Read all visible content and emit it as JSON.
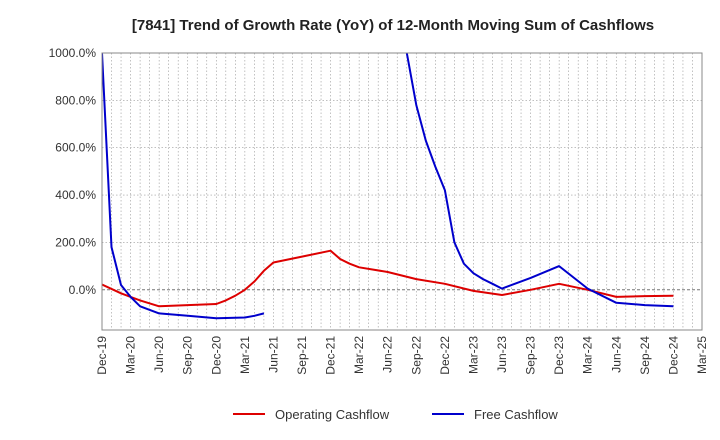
{
  "chart_data": {
    "type": "line",
    "title": "[7841]  Trend of Growth Rate (YoY) of 12-Month Moving Sum of Cashflows",
    "xlabel": "",
    "ylabel": "",
    "ylim": [
      -170,
      1000
    ],
    "yticks": [
      0,
      200,
      400,
      600,
      800,
      1000
    ],
    "ytick_labels": [
      "0.0%",
      "200.0%",
      "400.0%",
      "600.0%",
      "800.0%",
      "1000.0%"
    ],
    "x_tick_labels": [
      "Dec-19",
      "Mar-20",
      "Jun-20",
      "Sep-20",
      "Dec-20",
      "Mar-21",
      "Jun-21",
      "Sep-21",
      "Dec-21",
      "Mar-22",
      "Jun-22",
      "Sep-22",
      "Dec-22",
      "Mar-23",
      "Jun-23",
      "Sep-23",
      "Dec-23",
      "Mar-24",
      "Jun-24",
      "Sep-24",
      "Dec-24",
      "Mar-25"
    ],
    "grid": true,
    "legend_position": "bottom-center",
    "series": [
      {
        "name": "Operating Cashflow",
        "color": "#dd0000",
        "points": [
          [
            "2019-12",
            22
          ],
          [
            "2020-02",
            -15
          ],
          [
            "2020-03",
            -30
          ],
          [
            "2020-04",
            -45
          ],
          [
            "2020-06",
            -70
          ],
          [
            "2020-09",
            -65
          ],
          [
            "2020-12",
            -60
          ],
          [
            "2021-01",
            -45
          ],
          [
            "2021-02",
            -25
          ],
          [
            "2021-03",
            0
          ],
          [
            "2021-04",
            35
          ],
          [
            "2021-05",
            80
          ],
          [
            "2021-06",
            115
          ],
          [
            "2021-09",
            140
          ],
          [
            "2021-12",
            165
          ],
          [
            "2022-01",
            130
          ],
          [
            "2022-02",
            110
          ],
          [
            "2022-03",
            95
          ],
          [
            "2022-06",
            75
          ],
          [
            "2022-09",
            45
          ],
          [
            "2022-12",
            25
          ],
          [
            "2023-03",
            -5
          ],
          [
            "2023-06",
            -22
          ],
          [
            "2023-09",
            0
          ],
          [
            "2023-12",
            25
          ],
          [
            "2024-03",
            0
          ],
          [
            "2024-06",
            -30
          ],
          [
            "2024-09",
            -27
          ],
          [
            "2024-12",
            -25
          ]
        ]
      },
      {
        "name": "Free Cashflow",
        "color": "#0000cc",
        "points": [
          [
            "2019-12",
            1000
          ],
          [
            "2020-01",
            180
          ],
          [
            "2020-02",
            20
          ],
          [
            "2020-03",
            -30
          ],
          [
            "2020-04",
            -70
          ],
          [
            "2020-06",
            -100
          ],
          [
            "2020-09",
            -110
          ],
          [
            "2020-12",
            -120
          ],
          [
            "2021-03",
            -117
          ],
          [
            "2021-04",
            -110
          ],
          [
            "2021-05",
            -100
          ],
          null,
          [
            "2022-08",
            1000
          ],
          [
            "2022-09",
            780
          ],
          [
            "2022-10",
            630
          ],
          [
            "2022-11",
            520
          ],
          [
            "2022-12",
            420
          ],
          [
            "2023-01",
            200
          ],
          [
            "2023-02",
            110
          ],
          [
            "2023-03",
            70
          ],
          [
            "2023-04",
            45
          ],
          [
            "2023-05",
            25
          ],
          [
            "2023-06",
            5
          ],
          [
            "2023-09",
            50
          ],
          [
            "2023-12",
            100
          ],
          [
            "2024-03",
            5
          ],
          [
            "2024-06",
            -55
          ],
          [
            "2024-09",
            -65
          ],
          [
            "2024-12",
            -70
          ]
        ]
      }
    ]
  }
}
